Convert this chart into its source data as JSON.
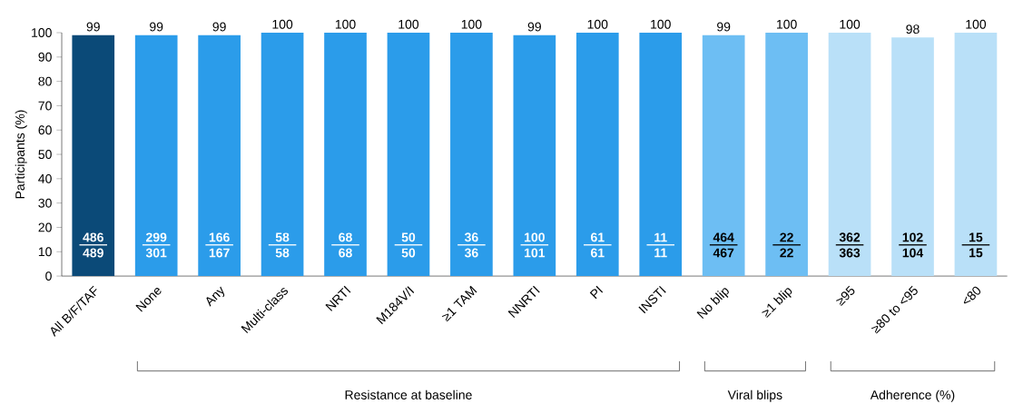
{
  "chart_data": {
    "type": "bar",
    "ylabel": "Participants (%)",
    "categories": [
      "All B/F/TAF",
      "None",
      "Any",
      "Multi-class",
      "NRTI",
      "M184V/I",
      "≥1 TAM",
      "NNRTI",
      "PI",
      "INSTI",
      "No blip",
      "≥1 blip",
      "≥95",
      "≥80 to <95",
      "<80"
    ],
    "values": [
      99,
      99,
      99,
      100,
      100,
      100,
      100,
      99,
      100,
      100,
      99,
      100,
      100,
      98,
      100
    ],
    "colors": [
      "#0b4a78",
      "#2b9cea",
      "#2b9cea",
      "#2b9cea",
      "#2b9cea",
      "#2b9cea",
      "#2b9cea",
      "#2b9cea",
      "#2b9cea",
      "#2b9cea",
      "#6dbef3",
      "#6dbef3",
      "#b9e0f8",
      "#b9e0f8",
      "#b9e0f8"
    ],
    "data_labels": true,
    "ylim": [
      0,
      100
    ],
    "yticks": [
      0,
      10,
      20,
      30,
      40,
      50,
      60,
      70,
      80,
      90,
      100
    ],
    "annotations": [
      "486",
      "489",
      "299",
      "301",
      "166",
      "167",
      "58",
      "58",
      "68",
      "68",
      "50",
      "50",
      "36",
      "36",
      "100",
      "101",
      "61",
      "61",
      "11",
      "11",
      "464",
      "467",
      "22",
      "22",
      "362",
      "363",
      "102",
      "104",
      "15",
      "15",
      "Resistance at baseline",
      "Viral blips",
      "Adherence (%)"
    ]
  }
}
